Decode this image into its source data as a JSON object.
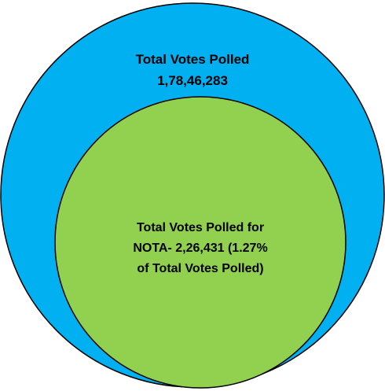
{
  "diagram": {
    "outer": {
      "title": "Total Votes Polled",
      "value": "1,78,46,283",
      "color": "#00B0F0"
    },
    "inner": {
      "line1": "Total Votes Polled for",
      "line2": "NOTA- 2,26,431 (1.27%",
      "line3": "of Total Votes Polled)",
      "color": "#92D050"
    },
    "stroke_color": "#000000"
  }
}
